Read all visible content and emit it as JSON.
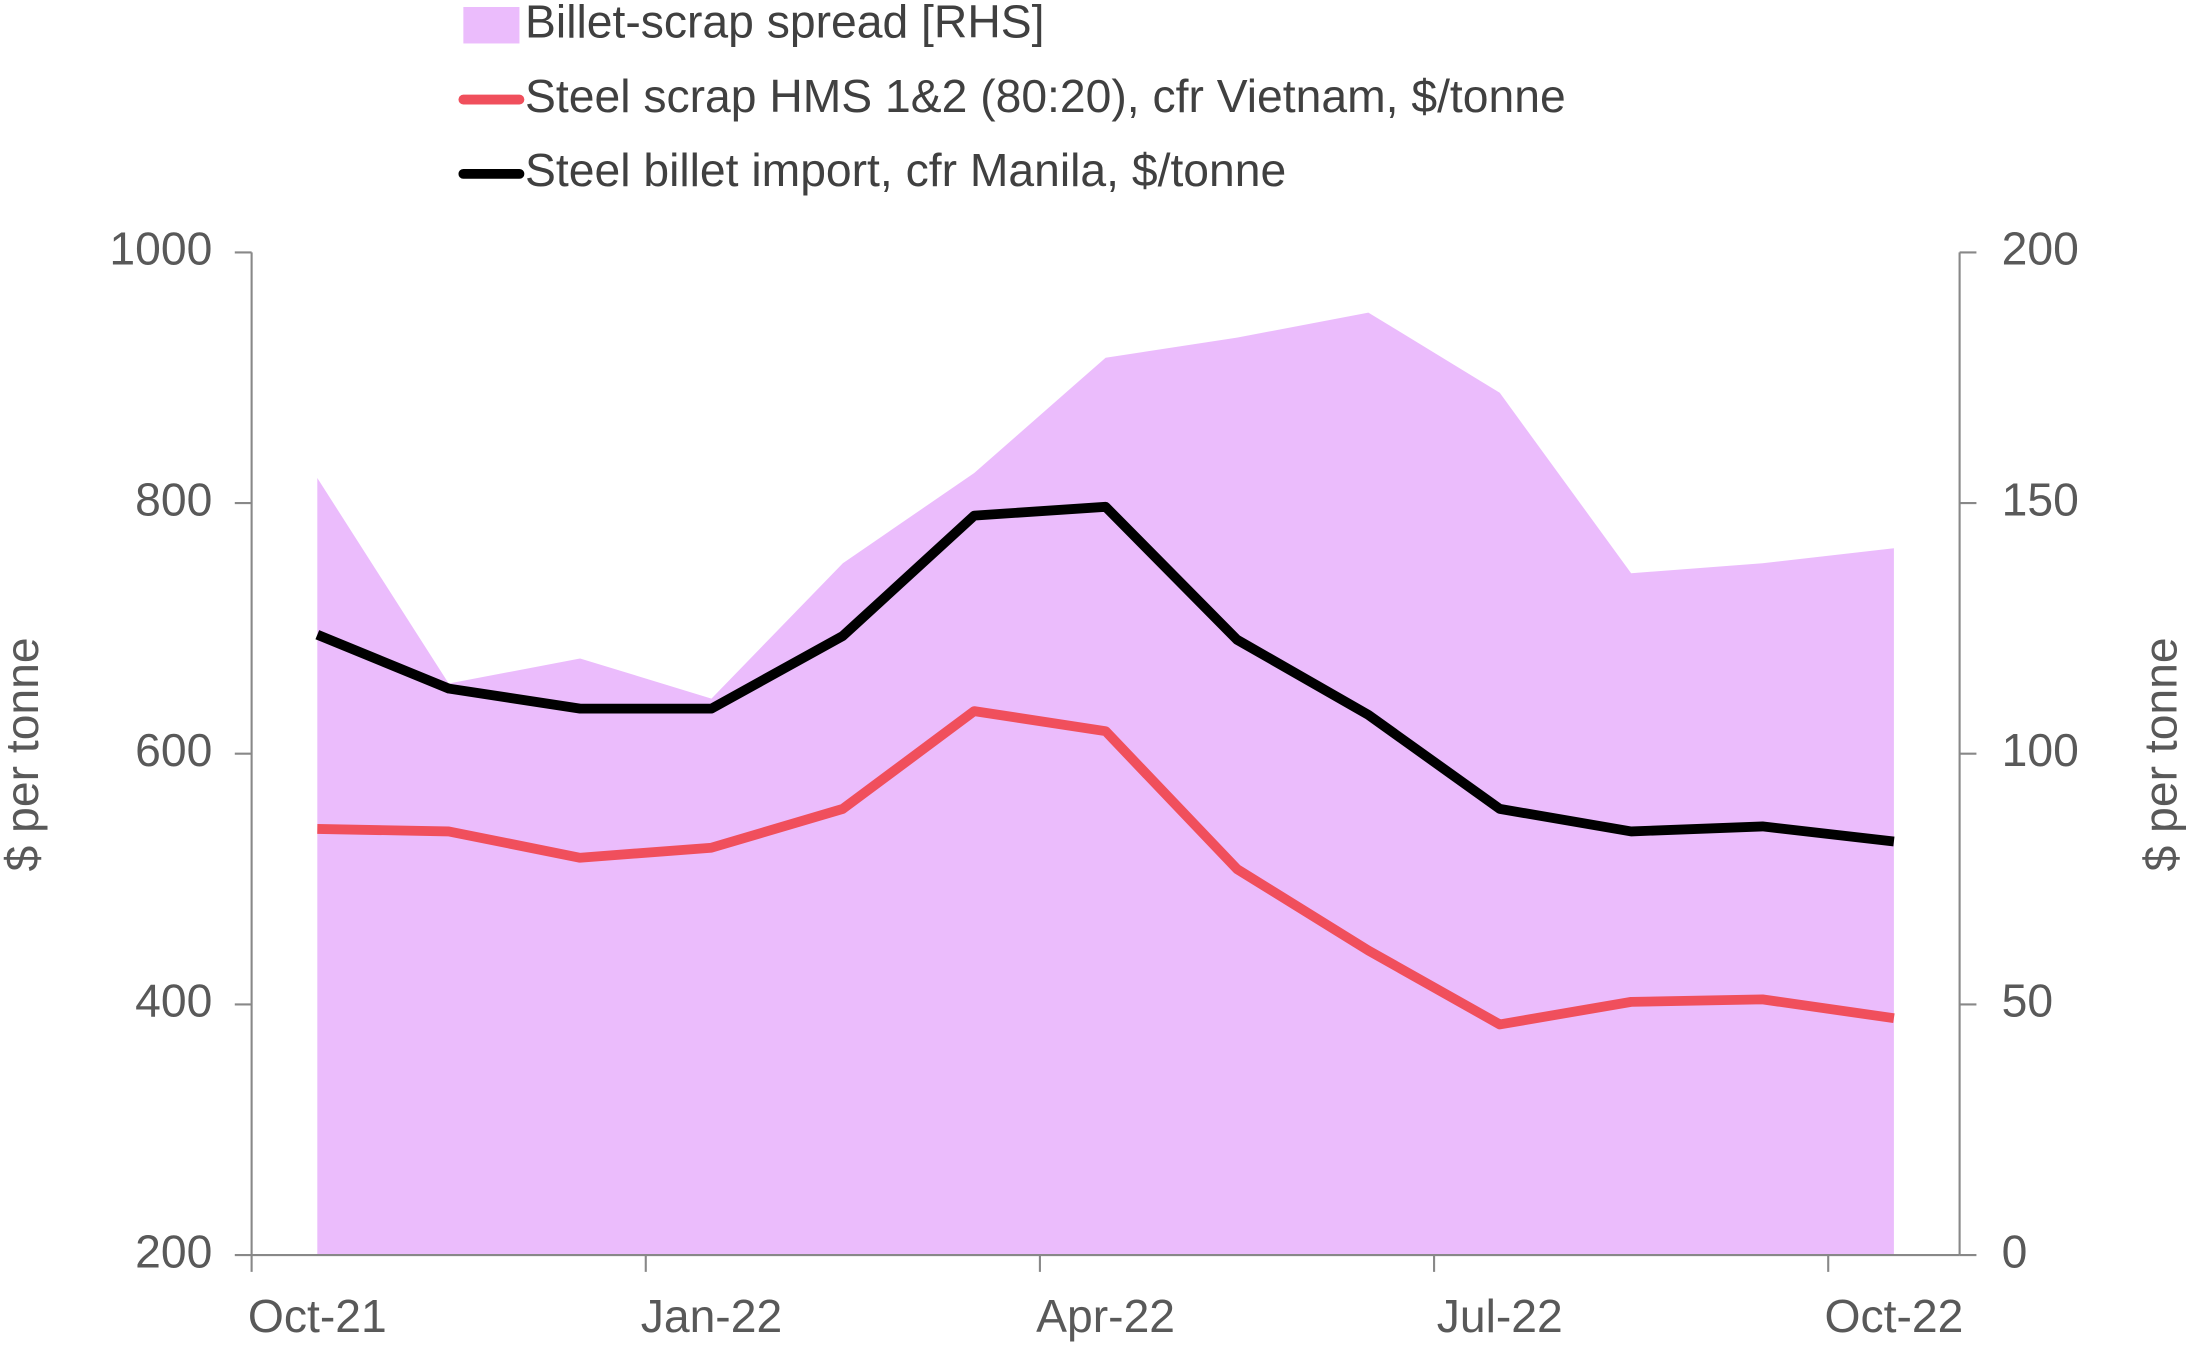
{
  "chart_data": {
    "type": "line",
    "y_label": "$ per tonne",
    "y2_label": "$ per tonne",
    "categories": [
      "Oct-21",
      null,
      null,
      "Jan-22",
      null,
      null,
      "Apr-22",
      null,
      null,
      "Jul-22",
      null,
      null,
      "Oct-22"
    ],
    "series": [
      {
        "name": "Billet-scrap spread [RHS]",
        "type": "area",
        "axis": "y2",
        "color": "#ebbcfc",
        "values": [
          155,
          114,
          119,
          111,
          138,
          156,
          179,
          183,
          188,
          172,
          136,
          138,
          141
        ]
      },
      {
        "name": "Steel scrap HMS 1&2 (80:20), cfr Vietnam, $/tonne",
        "type": "line",
        "color": "#f04f5c",
        "values": [
          540,
          538,
          517,
          525,
          556,
          634,
          618,
          508,
          443,
          384,
          402,
          404,
          389
        ]
      },
      {
        "name": "Steel billet import, cfr Manila, $/tonne",
        "type": "line",
        "color": "#000000",
        "values": [
          695,
          652,
          636,
          636,
          694,
          790,
          797,
          691,
          631,
          556,
          538,
          542,
          530
        ]
      }
    ],
    "ylim": [
      200,
      1000
    ],
    "yticks": [
      200,
      400,
      600,
      800,
      1000
    ],
    "y2lim": [
      0,
      200
    ],
    "y2ticks": [
      0,
      50,
      100,
      150,
      200
    ],
    "legend": "top"
  }
}
